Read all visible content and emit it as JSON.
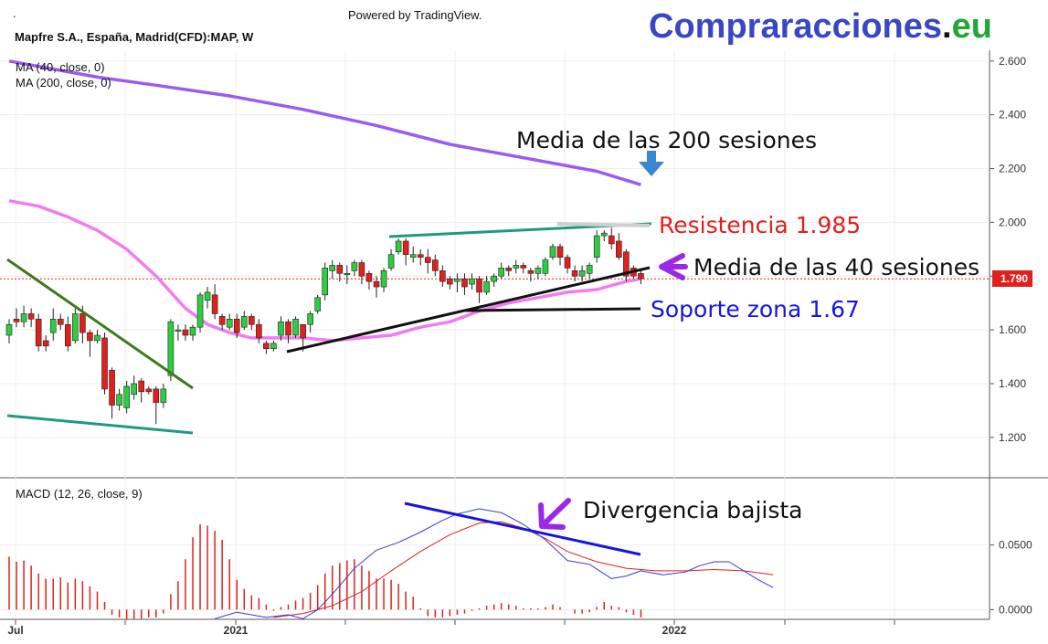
{
  "header": {
    "title": "Mapfre S.A., España, Madrid(CFD):MAP, W",
    "powered_by": "Powered by TradingView.",
    "dot": ".",
    "brand_main": "Compraracciones",
    "brand_dot": ".",
    "brand_tld": "eu"
  },
  "colors": {
    "up": "#2ecc40",
    "down": "#e0201c",
    "ma40": "#f07cf0",
    "ma200": "#9a5cf0",
    "brand_blue": "#3a47c4",
    "brand_green": "#22a638",
    "macd_line": "#3a3ad8",
    "signal_line": "#e0201c",
    "hist": "#e0201c",
    "price_tag": "#e0201c"
  },
  "chart_data": [
    {
      "type": "candlestick",
      "title": "Mapfre S.A., España, Madrid(CFD):MAP, W",
      "legend": [
        "MA (40, close, 0)",
        "MA (200, close, 0)"
      ],
      "x_ticks": [
        "Jul",
        "2021",
        "2022"
      ],
      "y_ticks": [
        "2.600",
        "2.400",
        "2.200",
        "2.000",
        "1.800",
        "1.600",
        "1.400",
        "1.200"
      ],
      "ylim": [
        1.05,
        2.64
      ],
      "last_price": "1.790",
      "candles": [
        [
          1.58,
          1.62,
          1.55,
          1.64
        ],
        [
          1.64,
          1.63,
          1.61,
          1.68
        ],
        [
          1.63,
          1.66,
          1.61,
          1.69
        ],
        [
          1.66,
          1.64,
          1.61,
          1.68
        ],
        [
          1.64,
          1.54,
          1.52,
          1.66
        ],
        [
          1.56,
          1.54,
          1.52,
          1.58
        ],
        [
          1.59,
          1.64,
          1.56,
          1.68
        ],
        [
          1.64,
          1.62,
          1.6,
          1.66
        ],
        [
          1.62,
          1.54,
          1.52,
          1.65
        ],
        [
          1.56,
          1.66,
          1.55,
          1.68
        ],
        [
          1.66,
          1.59,
          1.55,
          1.69
        ],
        [
          1.59,
          1.56,
          1.5,
          1.6
        ],
        [
          1.56,
          1.58,
          1.55,
          1.6
        ],
        [
          1.57,
          1.38,
          1.36,
          1.59
        ],
        [
          1.45,
          1.32,
          1.27,
          1.46
        ],
        [
          1.32,
          1.36,
          1.3,
          1.38
        ],
        [
          1.31,
          1.39,
          1.29,
          1.41
        ],
        [
          1.36,
          1.4,
          1.34,
          1.43
        ],
        [
          1.41,
          1.37,
          1.33,
          1.42
        ],
        [
          1.38,
          1.37,
          1.36,
          1.39
        ],
        [
          1.38,
          1.33,
          1.25,
          1.39
        ],
        [
          1.33,
          1.38,
          1.31,
          1.4
        ],
        [
          1.43,
          1.63,
          1.41,
          1.64
        ],
        [
          1.6,
          1.6,
          1.56,
          1.62
        ],
        [
          1.6,
          1.58,
          1.56,
          1.62
        ],
        [
          1.58,
          1.61,
          1.56,
          1.62
        ],
        [
          1.61,
          1.73,
          1.59,
          1.74
        ],
        [
          1.71,
          1.74,
          1.68,
          1.76
        ],
        [
          1.73,
          1.66,
          1.64,
          1.77
        ],
        [
          1.65,
          1.62,
          1.6,
          1.66
        ],
        [
          1.61,
          1.64,
          1.6,
          1.66
        ],
        [
          1.64,
          1.59,
          1.57,
          1.66
        ],
        [
          1.61,
          1.65,
          1.6,
          1.67
        ],
        [
          1.65,
          1.62,
          1.6,
          1.66
        ],
        [
          1.62,
          1.57,
          1.55,
          1.64
        ],
        [
          1.55,
          1.53,
          1.51,
          1.56
        ],
        [
          1.53,
          1.55,
          1.52,
          1.56
        ],
        [
          1.58,
          1.63,
          1.56,
          1.65
        ],
        [
          1.63,
          1.58,
          1.55,
          1.64
        ],
        [
          1.58,
          1.64,
          1.57,
          1.65
        ],
        [
          1.62,
          1.57,
          1.52,
          1.62
        ],
        [
          1.62,
          1.66,
          1.59,
          1.67
        ],
        [
          1.67,
          1.72,
          1.66,
          1.73
        ],
        [
          1.73,
          1.83,
          1.71,
          1.85
        ],
        [
          1.82,
          1.84,
          1.79,
          1.86
        ],
        [
          1.84,
          1.81,
          1.78,
          1.85
        ],
        [
          1.81,
          1.81,
          1.77,
          1.84
        ],
        [
          1.82,
          1.85,
          1.8,
          1.86
        ],
        [
          1.85,
          1.8,
          1.77,
          1.86
        ],
        [
          1.81,
          1.78,
          1.75,
          1.82
        ],
        [
          1.78,
          1.76,
          1.72,
          1.8
        ],
        [
          1.76,
          1.82,
          1.74,
          1.83
        ],
        [
          1.83,
          1.88,
          1.82,
          1.9
        ],
        [
          1.89,
          1.93,
          1.88,
          1.94
        ],
        [
          1.93,
          1.88,
          1.84,
          1.94
        ],
        [
          1.87,
          1.88,
          1.85,
          1.91
        ],
        [
          1.88,
          1.87,
          1.84,
          1.9
        ],
        [
          1.87,
          1.85,
          1.81,
          1.9
        ],
        [
          1.86,
          1.82,
          1.8,
          1.88
        ],
        [
          1.82,
          1.78,
          1.76,
          1.84
        ],
        [
          1.79,
          1.77,
          1.75,
          1.8
        ],
        [
          1.78,
          1.79,
          1.74,
          1.81
        ],
        [
          1.79,
          1.76,
          1.73,
          1.81
        ],
        [
          1.77,
          1.79,
          1.75,
          1.81
        ],
        [
          1.79,
          1.74,
          1.7,
          1.8
        ],
        [
          1.74,
          1.78,
          1.73,
          1.8
        ],
        [
          1.78,
          1.8,
          1.76,
          1.81
        ],
        [
          1.8,
          1.83,
          1.79,
          1.85
        ],
        [
          1.83,
          1.82,
          1.8,
          1.84
        ],
        [
          1.83,
          1.84,
          1.81,
          1.86
        ],
        [
          1.84,
          1.83,
          1.81,
          1.85
        ],
        [
          1.82,
          1.81,
          1.78,
          1.83
        ],
        [
          1.81,
          1.83,
          1.79,
          1.84
        ],
        [
          1.81,
          1.86,
          1.8,
          1.87
        ],
        [
          1.87,
          1.91,
          1.86,
          1.92
        ],
        [
          1.91,
          1.87,
          1.84,
          1.92
        ],
        [
          1.87,
          1.83,
          1.81,
          1.88
        ],
        [
          1.82,
          1.8,
          1.78,
          1.84
        ],
        [
          1.8,
          1.82,
          1.78,
          1.84
        ],
        [
          1.81,
          1.84,
          1.79,
          1.85
        ],
        [
          1.87,
          1.95,
          1.85,
          1.97
        ],
        [
          1.95,
          1.96,
          1.93,
          1.97
        ],
        [
          1.95,
          1.92,
          1.9,
          1.98
        ],
        [
          1.93,
          1.87,
          1.86,
          1.96
        ],
        [
          1.89,
          1.8,
          1.78,
          1.9
        ],
        [
          1.83,
          1.8,
          1.79,
          1.84
        ],
        [
          1.81,
          1.79,
          1.77,
          1.82
        ]
      ],
      "ma40": [
        [
          0,
          2.08
        ],
        [
          4,
          2.06
        ],
        [
          8,
          2.02
        ],
        [
          12,
          1.97
        ],
        [
          16,
          1.9
        ],
        [
          20,
          1.8
        ],
        [
          24,
          1.68
        ],
        [
          27,
          1.62
        ],
        [
          30,
          1.59
        ],
        [
          33,
          1.57
        ],
        [
          36,
          1.57
        ],
        [
          40,
          1.57
        ],
        [
          44,
          1.56
        ],
        [
          48,
          1.57
        ],
        [
          52,
          1.58
        ],
        [
          56,
          1.61
        ],
        [
          60,
          1.63
        ],
        [
          64,
          1.67
        ],
        [
          68,
          1.7
        ],
        [
          72,
          1.72
        ],
        [
          76,
          1.74
        ],
        [
          80,
          1.75
        ],
        [
          84,
          1.78
        ],
        [
          86,
          1.79
        ]
      ],
      "ma200": [
        [
          0,
          2.6
        ],
        [
          6,
          2.57
        ],
        [
          12,
          2.54
        ],
        [
          20,
          2.51
        ],
        [
          30,
          2.47
        ],
        [
          40,
          2.42
        ],
        [
          50,
          2.36
        ],
        [
          60,
          2.29
        ],
        [
          70,
          2.24
        ],
        [
          80,
          2.19
        ],
        [
          86,
          2.14
        ]
      ]
    },
    {
      "type": "macd",
      "legend": "MACD (12, 26, close, 9)",
      "y_ticks": [
        "0.0500",
        "0.0000"
      ],
      "ylim": [
        -0.0075,
        0.102
      ],
      "histogram": [
        0.041,
        0.037,
        0.038,
        0.034,
        0.028,
        0.024,
        0.024,
        0.025,
        0.021,
        0.024,
        0.022,
        0.018,
        0.014,
        0.006,
        -0.004,
        -0.006,
        -0.008,
        -0.007,
        -0.007,
        -0.006,
        -0.006,
        -0.003,
        0.012,
        0.022,
        0.039,
        0.056,
        0.066,
        0.065,
        0.061,
        0.054,
        0.039,
        0.023,
        0.016,
        0.011,
        0.009,
        0.004,
        -0.001,
        0.002,
        0.004,
        0.007,
        0.009,
        0.013,
        0.019,
        0.028,
        0.034,
        0.036,
        0.038,
        0.039,
        0.034,
        0.03,
        0.024,
        0.024,
        0.023,
        0.02,
        0.014,
        0.01,
        0.001,
        -0.005,
        -0.006,
        -0.006,
        -0.005,
        -0.004,
        -0.003,
        -0.001,
        0.001,
        0.003,
        0.004,
        0.005,
        0.004,
        0.003,
        0.001,
        0.001,
        0.001,
        0.002,
        0.004,
        0.002,
        0.0,
        -0.003,
        -0.003,
        -0.002,
        0.002,
        0.006,
        0.003,
        0.002,
        -0.002,
        -0.004,
        -0.006
      ],
      "macd": [
        [
          28,
          -0.007
        ],
        [
          31,
          -0.002
        ],
        [
          33,
          -0.004
        ],
        [
          35,
          -0.006
        ],
        [
          38,
          -0.004
        ],
        [
          40,
          -0.007
        ],
        [
          42,
          0.0
        ],
        [
          44,
          0.012
        ],
        [
          47,
          0.032
        ],
        [
          50,
          0.046
        ],
        [
          53,
          0.052
        ],
        [
          56,
          0.06
        ],
        [
          59,
          0.069
        ],
        [
          61,
          0.074
        ],
        [
          64,
          0.078
        ],
        [
          67,
          0.075
        ],
        [
          70,
          0.066
        ],
        [
          73,
          0.054
        ],
        [
          76,
          0.038
        ],
        [
          79,
          0.035
        ],
        [
          82,
          0.024
        ],
        [
          84,
          0.026
        ],
        [
          86,
          0.03
        ],
        [
          89,
          0.027
        ],
        [
          92,
          0.029
        ],
        [
          94,
          0.034
        ],
        [
          96,
          0.037
        ],
        [
          98,
          0.037
        ],
        [
          100,
          0.03
        ],
        [
          102,
          0.023
        ],
        [
          104,
          0.017
        ]
      ],
      "signal": [
        [
          36,
          -0.006
        ],
        [
          40,
          -0.003
        ],
        [
          44,
          0.003
        ],
        [
          48,
          0.014
        ],
        [
          52,
          0.03
        ],
        [
          56,
          0.045
        ],
        [
          60,
          0.058
        ],
        [
          64,
          0.067
        ],
        [
          67,
          0.068
        ],
        [
          70,
          0.063
        ],
        [
          73,
          0.055
        ],
        [
          76,
          0.045
        ],
        [
          80,
          0.037
        ],
        [
          84,
          0.032
        ],
        [
          88,
          0.03
        ],
        [
          92,
          0.03
        ],
        [
          96,
          0.031
        ],
        [
          100,
          0.03
        ],
        [
          104,
          0.027
        ]
      ]
    }
  ],
  "annotations": {
    "ma200_label": "Media de las 200 sesiones",
    "resistance_label": "Resistencia 1.985",
    "ma40_label": "Media de las 40 sesiones",
    "support_label": "Soporte zona 1.67",
    "divergence_label": "Divergencia bajista"
  }
}
